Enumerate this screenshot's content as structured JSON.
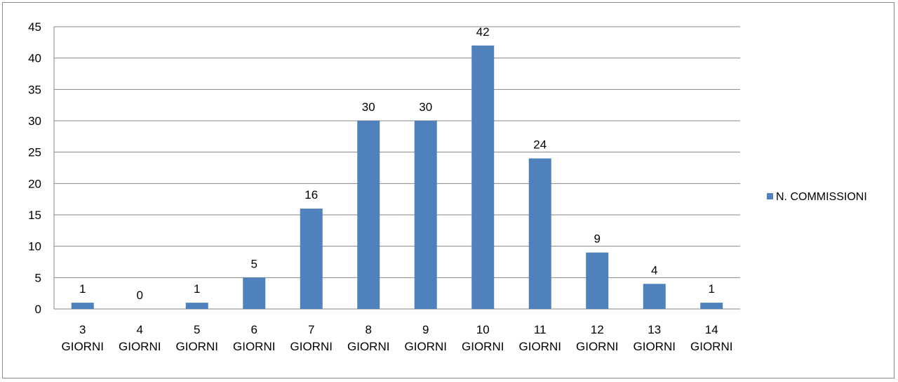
{
  "chart_data": {
    "type": "bar",
    "title": "",
    "xlabel": "",
    "ylabel": "",
    "categories": [
      [
        "3",
        "GIORNI"
      ],
      [
        "4",
        "GIORNI"
      ],
      [
        "5",
        "GIORNI"
      ],
      [
        "6",
        "GIORNI"
      ],
      [
        "7",
        "GIORNI"
      ],
      [
        "8",
        "GIORNI"
      ],
      [
        "9",
        "GIORNI"
      ],
      [
        "10",
        "GIORNI"
      ],
      [
        "11",
        "GIORNI"
      ],
      [
        "12",
        "GIORNI"
      ],
      [
        "13",
        "GIORNI"
      ],
      [
        "14",
        "GIORNI"
      ]
    ],
    "series": [
      {
        "name": "N. COMMISSIONI",
        "color": "#4F81BD",
        "values": [
          1,
          0,
          1,
          5,
          16,
          30,
          30,
          42,
          24,
          9,
          4,
          1
        ]
      }
    ],
    "ylim": [
      0,
      45
    ],
    "yticks": [
      "0",
      "5",
      "10",
      "15",
      "20",
      "25",
      "30",
      "35",
      "40",
      "45"
    ],
    "grid": true,
    "legend_position": "right",
    "data_labels": true
  }
}
